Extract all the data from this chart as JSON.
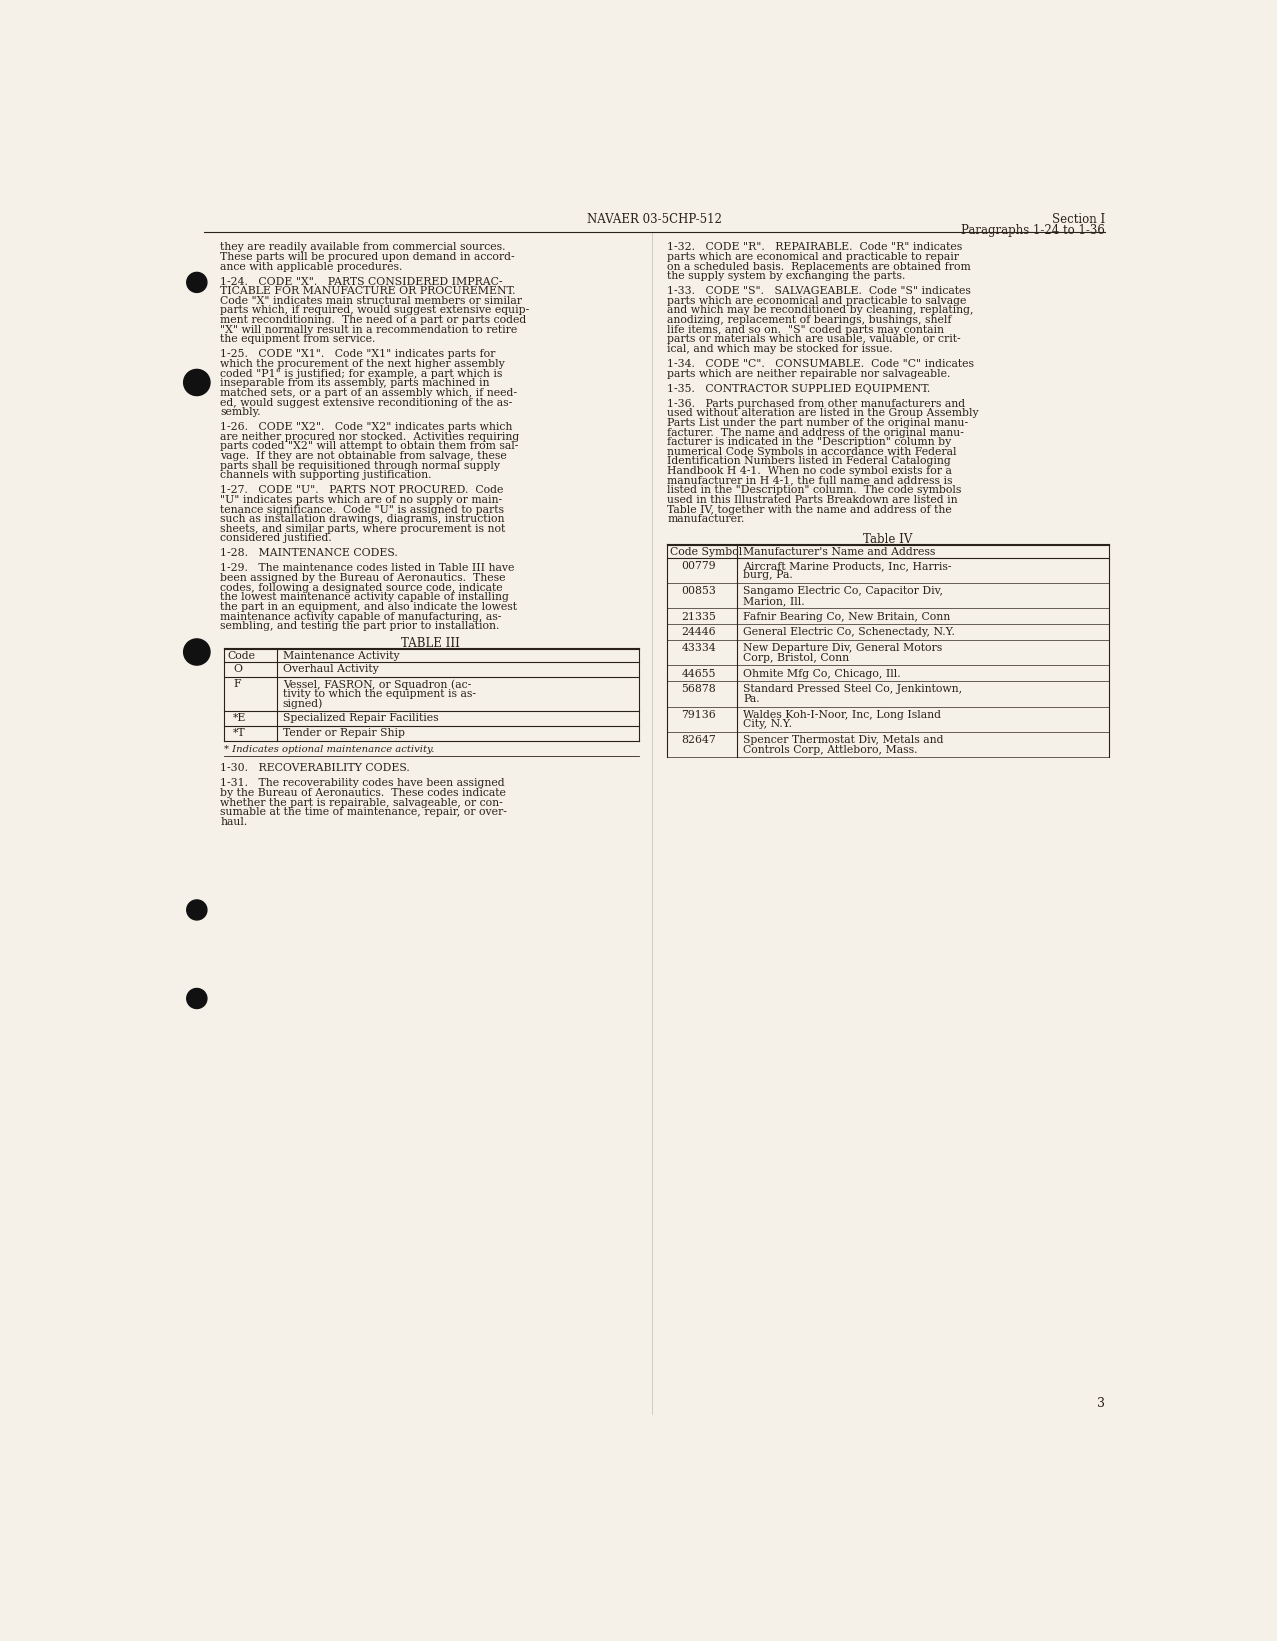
{
  "bg_color": "#f5f0e8",
  "text_color": "#2a2218",
  "page_number": "3",
  "header_center": "NAVAER 03-5CHP-512",
  "header_right_line1": "Section I",
  "header_right_line2": "Paragraphs 1-24 to 1-36",
  "table3": {
    "title": "TABLE III",
    "col1_header": "Code",
    "col2_header": "Maintenance Activity",
    "rows": [
      [
        "O",
        "Overhaul Activity"
      ],
      [
        "F",
        "Vessel, FASRON, or Squadron (ac-\ntivity to which the equipment is as-\nsigned)"
      ],
      [
        "*E",
        "Specialized Repair Facilities"
      ],
      [
        "*T",
        "Tender or Repair Ship"
      ]
    ],
    "footnote": "* Indicates optional maintenance activity."
  },
  "table4": {
    "title": "Table IV",
    "col1_header": "Code Symbol",
    "col2_header": "Manufacturer's Name and Address",
    "rows": [
      [
        "00779",
        "Aircraft Marine Products, Inc, Harris-\nburg, Pa."
      ],
      [
        "00853",
        "Sangamo Electric Co, Capacitor Div,\nMarion, Ill."
      ],
      [
        "21335",
        "Fafnir Bearing Co, New Britain, Conn"
      ],
      [
        "24446",
        "General Electric Co, Schenectady, N.Y."
      ],
      [
        "43334",
        "New Departure Div, General Motors\nCorp, Bristol, Conn"
      ],
      [
        "44655",
        "Ohmite Mfg Co, Chicago, Ill."
      ],
      [
        "56878",
        "Standard Pressed Steel Co, Jenkintown,\nPa."
      ],
      [
        "79136",
        "Waldes Koh-I-Noor, Inc, Long Island\nCity, N.Y."
      ],
      [
        "82647",
        "Spencer Thermostat Div, Metals and\nControls Corp, Attleboro, Mass."
      ]
    ]
  },
  "left_lines": [
    "they are readily available from commercial sources.",
    "These parts will be procured upon demand in accord-",
    "ance with applicable procedures.",
    "",
    "1-24.   CODE \"X\".   PARTS CONSIDERED IMPRAC-",
    "TICABLE FOR MANUFACTURE OR PROCUREMENT.",
    "Code \"X\" indicates main structural members or similar",
    "parts which, if required, would suggest extensive equip-",
    "ment reconditioning.  The need of a part or parts coded",
    "\"X\" will normally result in a recommendation to retire",
    "the equipment from service.",
    "",
    "1-25.   CODE \"X1\".   Code \"X1\" indicates parts for",
    "which the procurement of the next higher assembly",
    "coded \"P1\" is justified; for example, a part which is",
    "inseparable from its assembly, parts machined in",
    "matched sets, or a part of an assembly which, if need-",
    "ed, would suggest extensive reconditioning of the as-",
    "sembly.",
    "",
    "1-26.   CODE \"X2\".   Code \"X2\" indicates parts which",
    "are neither procured nor stocked.  Activities requiring",
    "parts coded \"X2\" will attempt to obtain them from sal-",
    "vage.  If they are not obtainable from salvage, these",
    "parts shall be requisitioned through normal supply",
    "channels with supporting justification.",
    "",
    "1-27.   CODE \"U\".   PARTS NOT PROCURED.  Code",
    "\"U\" indicates parts which are of no supply or main-",
    "tenance significance.  Code \"U\" is assigned to parts",
    "such as installation drawings, diagrams, instruction",
    "sheets, and similar parts, where procurement is not",
    "considered justified.",
    "",
    "1-28.   MAINTENANCE CODES.",
    "",
    "1-29.   The maintenance codes listed in Table III have",
    "been assigned by the Bureau of Aeronautics.  These",
    "codes, following a designated source code, indicate",
    "the lowest maintenance activity capable of installing",
    "the part in an equipment, and also indicate the lowest",
    "maintenance activity capable of manufacturing, as-",
    "sembling, and testing the part prior to installation."
  ],
  "left_bottom_lines": [
    "1-30.   RECOVERABILITY CODES.",
    "",
    "1-31.   The recoverability codes have been assigned",
    "by the Bureau of Aeronautics.  These codes indicate",
    "whether the part is repairable, salvageable, or con-",
    "sumable at the time of maintenance, repair, or over-",
    "haul."
  ],
  "right_lines": [
    "1-32.   CODE \"R\".   REPAIRABLE.  Code \"R\" indicates",
    "parts which are economical and practicable to repair",
    "on a scheduled basis.  Replacements are obtained from",
    "the supply system by exchanging the parts.",
    "",
    "1-33.   CODE \"S\".   SALVAGEABLE.  Code \"S\" indicates",
    "parts which are economical and practicable to salvage",
    "and which may be reconditioned by cleaning, replating,",
    "anodizing, replacement of bearings, bushings, shelf",
    "life items, and so on.  \"S\" coded parts may contain",
    "parts or materials which are usable, valuable, or crit-",
    "ical, and which may be stocked for issue.",
    "",
    "1-34.   CODE \"C\".   CONSUMABLE.  Code \"C\" indicates",
    "parts which are neither repairable nor salvageable.",
    "",
    "1-35.   CONTRACTOR SUPPLIED EQUIPMENT.",
    "",
    "1-36.   Parts purchased from other manufacturers and",
    "used without alteration are listed in the Group Assembly",
    "Parts List under the part number of the original manu-",
    "facturer.  The name and address of the original manu-",
    "facturer is indicated in the \"Description\" column by",
    "numerical Code Symbols in accordance with Federal",
    "Identification Numbers listed in Federal Cataloging",
    "Handbook H 4-1.  When no code symbol exists for a",
    "manufacturer in H 4-1, the full name and address is",
    "listed in the \"Description\" column.  The code symbols",
    "used in this Illustrated Parts Breakdown are listed in",
    "Table IV, together with the name and address of the",
    "manufacturer."
  ],
  "dot_positions": [
    1530,
    1400,
    1050,
    715,
    600
  ],
  "dot_radii": [
    13,
    17,
    17,
    13,
    13
  ]
}
